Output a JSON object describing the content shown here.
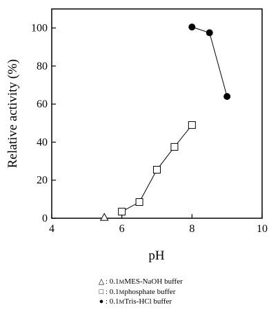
{
  "chart_data": {
    "type": "scatter",
    "title": "",
    "xlabel": "pH",
    "ylabel": "Relative activity (%)",
    "xlim": [
      4,
      10
    ],
    "ylim": [
      0,
      110
    ],
    "xticks": [
      4,
      6,
      8,
      10
    ],
    "yticks": [
      0,
      20,
      40,
      60,
      80,
      100
    ],
    "grid": false,
    "series": [
      {
        "name": "0.1 M MES-NaOH buffer",
        "marker": "open-triangle",
        "connected": false,
        "x": [
          5.5
        ],
        "y": [
          0.3
        ]
      },
      {
        "name": "0.1 M phosphate buffer",
        "marker": "open-square",
        "connected": true,
        "x": [
          6.0,
          6.5,
          7.0,
          7.5,
          8.0
        ],
        "y": [
          3.5,
          8.5,
          25.5,
          37.5,
          49
        ]
      },
      {
        "name": "0.1 M Tris-HCl buffer",
        "marker": "filled-circle",
        "connected": true,
        "x": [
          8.0,
          8.5,
          9.0
        ],
        "y": [
          100.5,
          97.5,
          64
        ]
      }
    ]
  },
  "legend": [
    {
      "symbol": "△",
      "prefix": ": 0.1 ",
      "unit": "M",
      "suffix": " MES-NaOH buffer"
    },
    {
      "symbol": "□",
      "prefix": ": 0.1 ",
      "unit": "M",
      "suffix": " phosphate buffer"
    },
    {
      "symbol": "●",
      "prefix": ": 0.1 ",
      "unit": "M",
      "suffix": " Tris-HCl buffer"
    }
  ]
}
